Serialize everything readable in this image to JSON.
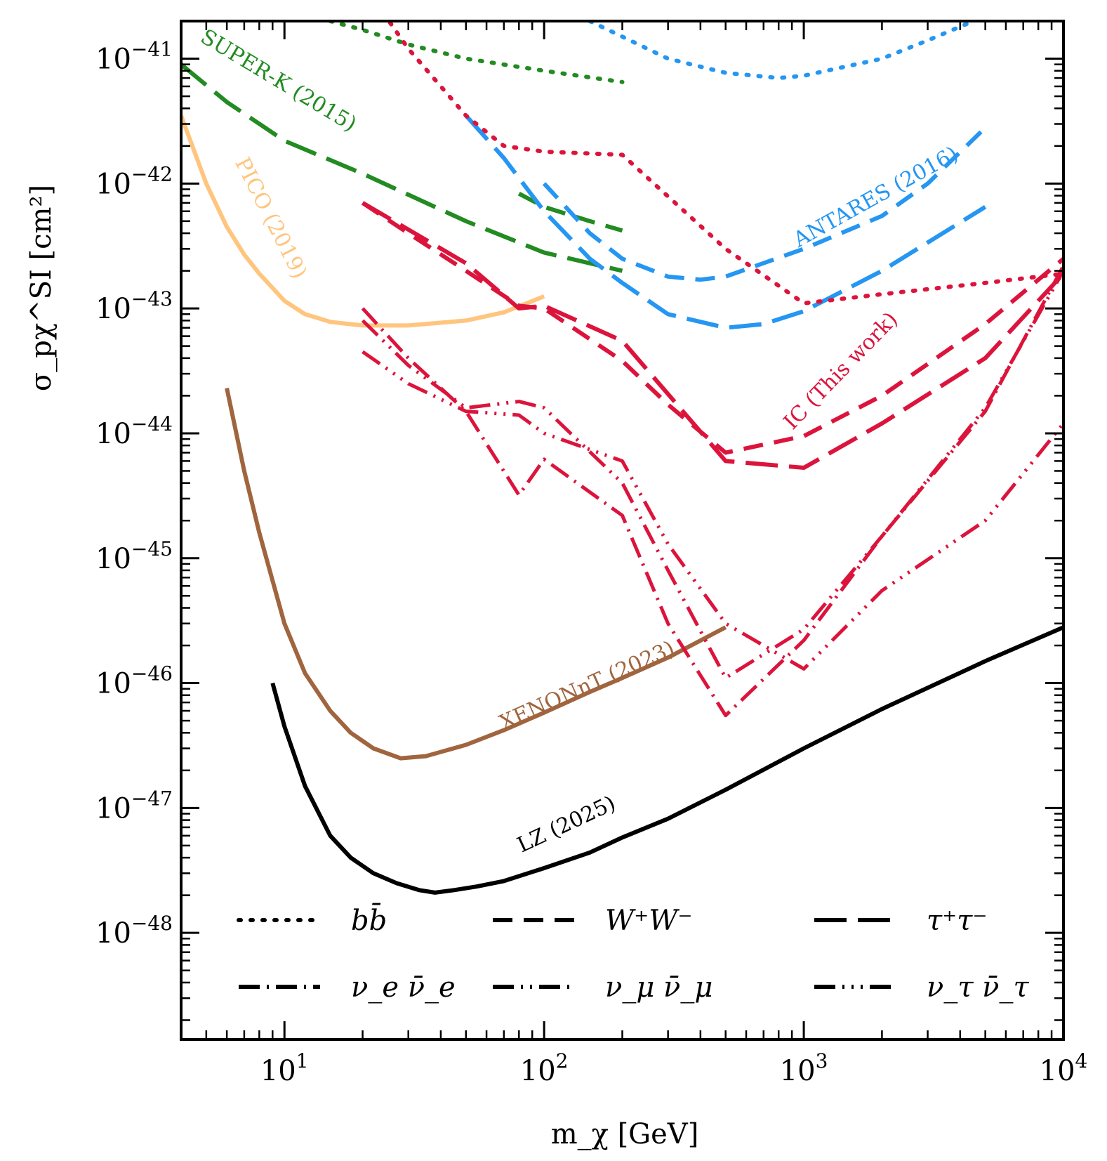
{
  "chart_data": {
    "type": "line",
    "title": "",
    "xlabel": "m_χ  [GeV]",
    "ylabel": "σ_pχ^SI  [cm²]",
    "xscale": "log",
    "yscale": "log",
    "xlim": [
      4,
      10000
    ],
    "ylim": [
      1.4e-49,
      2e-41
    ],
    "xticks": [
      {
        "value": 10,
        "base": "10",
        "exp": "1"
      },
      {
        "value": 100,
        "base": "10",
        "exp": "2"
      },
      {
        "value": 1000,
        "base": "10",
        "exp": "3"
      },
      {
        "value": 10000,
        "base": "10",
        "exp": "4"
      }
    ],
    "yticks": [
      {
        "value": 1e-41,
        "base": "10",
        "exp": "−41"
      },
      {
        "value": 1e-42,
        "base": "10",
        "exp": "−42"
      },
      {
        "value": 1e-43,
        "base": "10",
        "exp": "−43"
      },
      {
        "value": 1e-44,
        "base": "10",
        "exp": "−44"
      },
      {
        "value": 1e-45,
        "base": "10",
        "exp": "−45"
      },
      {
        "value": 1e-46,
        "base": "10",
        "exp": "−46"
      },
      {
        "value": 1e-47,
        "base": "10",
        "exp": "−47"
      },
      {
        "value": 1e-48,
        "base": "10",
        "exp": "−48"
      }
    ],
    "grid": false,
    "legend": {
      "placement": "lower-center",
      "entries": [
        {
          "label": "bb̄",
          "style": "dotted"
        },
        {
          "label": "W⁺W⁻",
          "style": "dashed"
        },
        {
          "label": "τ⁺τ⁻",
          "style": "longdash"
        },
        {
          "label": "ν_e ν̄_e",
          "style": "dashdot"
        },
        {
          "label": "ν_μ ν̄_μ",
          "style": "dashdotdot"
        },
        {
          "label": "ν_τ ν̄_τ",
          "style": "dashdotdotdot"
        }
      ]
    },
    "annotations": [
      {
        "text": "SUPER-K (2015)",
        "x": 9.2,
        "y": 6e-42,
        "angle": 31,
        "color": "green"
      },
      {
        "text": "PICO (2019)",
        "x": 8.4,
        "y": 5e-43,
        "angle": 63,
        "color": "orange"
      },
      {
        "text": "ANTARES (2016)",
        "x": 1950,
        "y": 7e-43,
        "angle": -29,
        "color": "blue"
      },
      {
        "text": "IC (This work)",
        "x": 1450,
        "y": 2.9e-44,
        "angle": -46,
        "color": "red"
      },
      {
        "text": "XENONnT (2023)",
        "x": 150,
        "y": 8.5e-47,
        "angle": -24,
        "color": "brown"
      },
      {
        "text": "LZ (2025)",
        "x": 125,
        "y": 6.6e-48,
        "angle": -25,
        "color": "black"
      }
    ],
    "colors": {
      "green": "#228b22",
      "orange": "#ffc57e",
      "blue": "#2596f2",
      "red": "#dc143c",
      "brown": "#a0653e",
      "black": "#000000"
    },
    "series": [
      {
        "experiment": "LZ (2025)",
        "style": "solid",
        "color": "black",
        "x": [
          9,
          10,
          12,
          15,
          18,
          22,
          27,
          33,
          38,
          45,
          55,
          70,
          100,
          150,
          200,
          300,
          500,
          1000,
          2000,
          5000,
          10000
        ],
        "y": [
          1e-46,
          4.5e-47,
          1.5e-47,
          6e-48,
          4e-48,
          3e-48,
          2.5e-48,
          2.2e-48,
          2.1e-48,
          2.2e-48,
          2.35e-48,
          2.6e-48,
          3.3e-48,
          4.4e-48,
          5.8e-48,
          8.2e-48,
          1.4e-47,
          3e-47,
          6.2e-47,
          1.5e-46,
          2.8e-46
        ]
      },
      {
        "experiment": "XENONnT (2023)",
        "style": "solid",
        "color": "brown",
        "x": [
          6,
          7,
          8,
          10,
          12,
          15,
          18,
          22,
          28,
          35,
          50,
          70,
          100,
          150,
          200,
          300,
          500
        ],
        "y": [
          2.3e-44,
          5e-45,
          1.6e-45,
          3e-46,
          1.2e-46,
          6e-47,
          4e-47,
          3e-47,
          2.5e-47,
          2.6e-47,
          3.2e-47,
          4.2e-47,
          5.8e-47,
          8.5e-47,
          1.1e-46,
          1.6e-46,
          2.8e-46
        ]
      },
      {
        "experiment": "PICO (2019)",
        "style": "solid",
        "color": "orange",
        "x": [
          4,
          5,
          6,
          7,
          8,
          10,
          12,
          15,
          20,
          30,
          50,
          70,
          100
        ],
        "y": [
          3.5e-42,
          1e-42,
          4.5e-43,
          2.7e-43,
          1.9e-43,
          1.15e-43,
          9e-44,
          7.8e-44,
          7.3e-44,
          7.3e-44,
          8e-44,
          9.3e-44,
          1.25e-43
        ]
      },
      {
        "experiment": "SUPER-K (2015)",
        "channel": "bb̄",
        "style": "dotted",
        "color": "green",
        "x": [
          15,
          20,
          30,
          50,
          100,
          200
        ],
        "y": [
          2e-41,
          1.7e-41,
          1.3e-41,
          1e-41,
          8e-42,
          6.5e-42
        ]
      },
      {
        "experiment": "SUPER-K (2015)",
        "channel": "W⁺W⁻",
        "style": "dashed",
        "color": "green",
        "x": [
          80,
          100,
          150,
          200
        ],
        "y": [
          8.3e-43,
          6.5e-43,
          5e-43,
          4.2e-43
        ]
      },
      {
        "experiment": "SUPER-K (2015)",
        "channel": "τ⁺τ⁻",
        "style": "longdash",
        "color": "green",
        "x": [
          4,
          6,
          10,
          20,
          50,
          100,
          200
        ],
        "y": [
          9e-42,
          4.5e-42,
          2.2e-42,
          1.2e-42,
          5e-43,
          2.8e-43,
          2e-43
        ]
      },
      {
        "experiment": "ANTARES (2016)",
        "channel": "bb̄",
        "style": "dotted",
        "color": "blue",
        "x": [
          150,
          200,
          300,
          500,
          800,
          1000,
          2000,
          3000,
          4500
        ],
        "y": [
          2e-41,
          1.5e-41,
          1e-41,
          7.7e-42,
          7e-42,
          7.3e-42,
          1e-41,
          1.4e-41,
          2e-41
        ]
      },
      {
        "experiment": "ANTARES (2016)",
        "channel": "W⁺W⁻",
        "style": "dashed",
        "color": "blue",
        "x": [
          100,
          150,
          200,
          300,
          400,
          500,
          1000,
          2000,
          3000,
          5000
        ],
        "y": [
          1e-42,
          4e-43,
          2.5e-43,
          1.8e-43,
          1.7e-43,
          1.8e-43,
          3e-43,
          5.5e-43,
          1e-42,
          2.8e-42
        ]
      },
      {
        "experiment": "ANTARES (2016)",
        "channel": "τ⁺τ⁻",
        "style": "longdash",
        "color": "blue",
        "x": [
          50,
          70,
          100,
          150,
          200,
          300,
          500,
          700,
          1000,
          2000,
          5000
        ],
        "y": [
          3.5e-42,
          1.6e-42,
          6e-43,
          2.5e-43,
          1.6e-43,
          9e-44,
          7e-44,
          7.5e-44,
          9.5e-44,
          2e-43,
          6.5e-43
        ]
      },
      {
        "experiment": "IC (This work)",
        "channel": "bb̄",
        "style": "dotted",
        "color": "red",
        "x": [
          20,
          30,
          50,
          70,
          100,
          200,
          500,
          1000,
          2000,
          5000,
          10000
        ],
        "y": [
          4e-41,
          1.2e-41,
          3.5e-42,
          2e-42,
          1.8e-42,
          1.7e-42,
          3e-43,
          1.1e-43,
          1.3e-43,
          1.6e-43,
          1.9e-43
        ]
      },
      {
        "experiment": "IC (This work)",
        "channel": "W⁺W⁻",
        "style": "dashed",
        "color": "red",
        "x": [
          20,
          30,
          50,
          80,
          100,
          200,
          300,
          500,
          1000,
          2000,
          5000,
          10000
        ],
        "y": [
          7e-43,
          4e-43,
          2e-43,
          1.05e-43,
          1e-43,
          3.8e-44,
          1.7e-44,
          7e-45,
          9.5e-45,
          2e-44,
          7.5e-44,
          2.5e-43
        ]
      },
      {
        "experiment": "IC (This work)",
        "channel": "τ⁺τ⁻",
        "style": "longdash",
        "color": "red",
        "x": [
          20,
          50,
          80,
          100,
          200,
          500,
          1000,
          2000,
          5000,
          10000
        ],
        "y": [
          7e-43,
          2.3e-43,
          1e-43,
          1.05e-43,
          5.5e-44,
          6e-45,
          5.3e-45,
          1.2e-44,
          4e-44,
          1.9e-43
        ]
      },
      {
        "experiment": "IC (This work)",
        "channel": "ν_e ν̄_e",
        "style": "dashdot",
        "color": "red",
        "x": [
          20,
          30,
          50,
          80,
          100,
          200,
          300,
          500,
          1000,
          2000,
          5000,
          10000
        ],
        "y": [
          1e-43,
          4e-44,
          1.5e-44,
          3.2e-45,
          6.2e-45,
          2.2e-45,
          3e-46,
          5.5e-47,
          2.2e-46,
          1.5e-45,
          1.5e-44,
          2.2e-43
        ]
      },
      {
        "experiment": "IC (This work)",
        "channel": "ν_μ ν̄_μ",
        "style": "dashdotdot",
        "color": "red",
        "x": [
          20,
          30,
          50,
          80,
          100,
          200,
          300,
          500,
          1000,
          2000,
          5000,
          10000
        ],
        "y": [
          8e-44,
          3.5e-44,
          1.6e-44,
          1.8e-44,
          1.6e-44,
          4e-45,
          8e-46,
          1.1e-46,
          2.7e-46,
          1.5e-45,
          1.6e-44,
          2e-43
        ]
      },
      {
        "experiment": "IC (This work)",
        "channel": "ν_τ ν̄_τ",
        "style": "dashdotdotdot",
        "color": "red",
        "x": [
          20,
          30,
          50,
          80,
          100,
          200,
          300,
          500,
          1000,
          2000,
          5000,
          10000
        ],
        "y": [
          4.5e-44,
          2.5e-44,
          1.5e-44,
          1.4e-44,
          1e-44,
          6e-45,
          1.3e-45,
          3e-46,
          1.3e-46,
          5.5e-46,
          2e-45,
          1.2e-44
        ]
      }
    ]
  }
}
